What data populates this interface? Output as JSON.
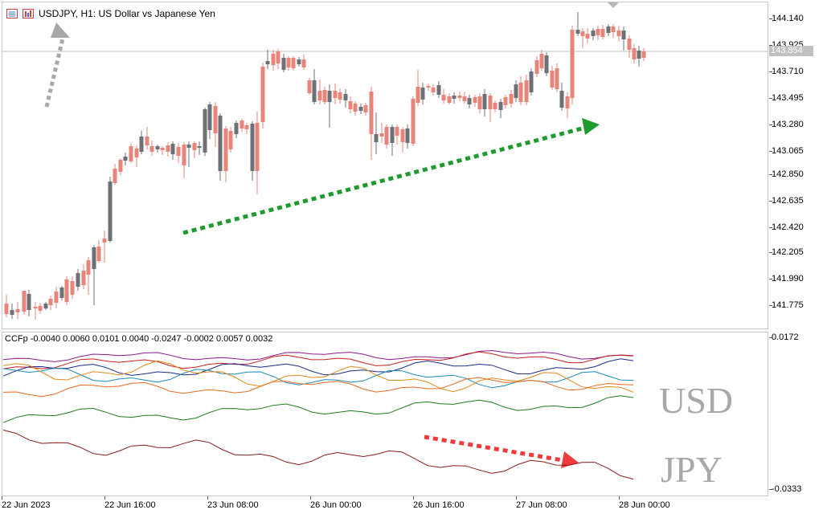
{
  "chart": {
    "symbol_title": "USDJPY, H1:  US Dollar vs Japanese Yen",
    "current_price": "143.854",
    "price_axis_labels": [
      "144.140",
      "143.925",
      "143.710",
      "143.495",
      "143.280",
      "143.065",
      "142.850",
      "142.635",
      "142.420",
      "142.205",
      "141.990",
      "141.775"
    ],
    "time_axis_labels": [
      "22 Jun 2023",
      "22 Jun 16:00",
      "23 Jun 08:00",
      "26 Jun 00:00",
      "26 Jun 16:00",
      "27 Jun 08:00",
      "28 Jun 00:00"
    ]
  },
  "indicator": {
    "title": "CCFp -0.0040 0.0060 0.0101 0.0040 -0.0247 -0.0002 0.0057 0.0032",
    "axis_max": "0.0172",
    "axis_min": "-0.0333",
    "label_usd": "USD",
    "label_jpy": "JPY"
  },
  "colors": {
    "bull": "#e8857a",
    "bear": "#6d7176",
    "green_arrow": "#1f9a2e",
    "gray_arrow": "#a8a8a8",
    "red_arrow": "#ee3b3b"
  },
  "icons": [
    "chart-window-icon",
    "indicator-window-icon"
  ]
}
